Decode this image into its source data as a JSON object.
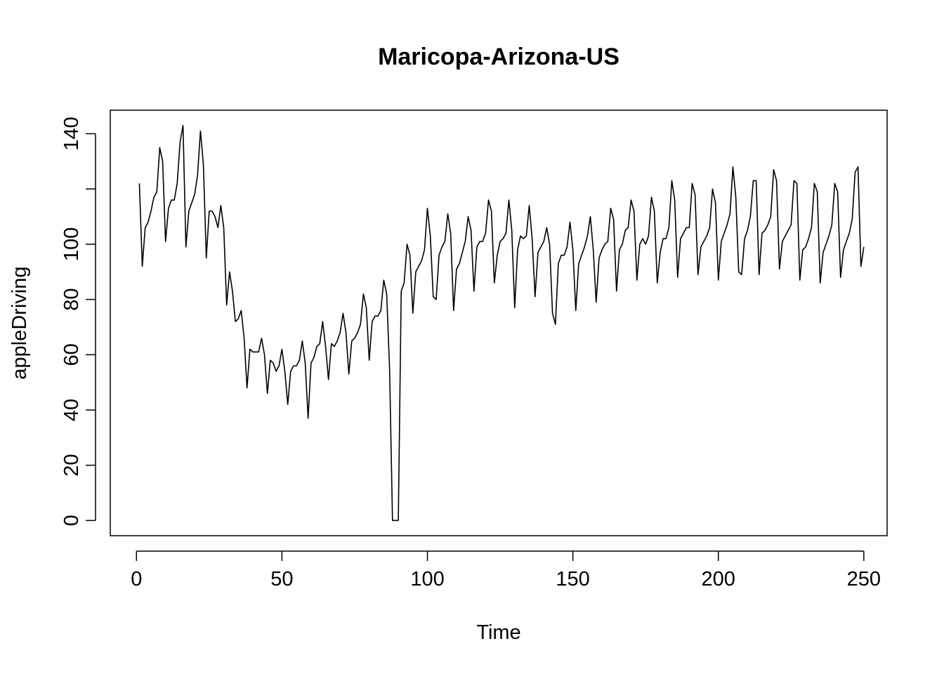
{
  "chart_data": {
    "type": "line",
    "title": "Maricopa-Arizona-US",
    "xlabel": "Time",
    "ylabel": "appleDriving",
    "xlim": [
      -9,
      258
    ],
    "ylim": [
      -5.5,
      148.5
    ],
    "x_ticks": [
      0,
      50,
      100,
      150,
      200,
      250
    ],
    "y_ticks": [
      0,
      20,
      40,
      60,
      80,
      100,
      140
    ],
    "grid": false,
    "legend": "none",
    "line_color": "#000000",
    "series": [
      {
        "x_start": 1,
        "values": [
          122,
          92,
          106,
          108,
          112,
          117,
          119,
          135,
          130,
          101,
          113,
          116,
          116,
          122,
          137,
          143,
          99,
          112,
          115,
          118,
          125,
          141,
          129,
          95,
          112,
          112,
          110,
          106,
          114,
          106,
          78,
          90,
          83,
          72,
          73,
          76,
          66,
          48,
          62,
          61,
          61,
          61,
          66,
          60,
          46,
          58,
          57,
          54,
          56,
          62,
          54,
          42,
          54,
          56,
          56,
          58,
          65,
          57,
          37,
          57,
          59,
          63,
          64,
          72,
          63,
          51,
          64,
          63,
          65,
          68,
          75,
          68,
          53,
          65,
          66,
          68,
          71,
          82,
          77,
          58,
          72,
          74,
          74,
          76,
          87,
          82,
          55,
          0,
          0,
          0,
          83,
          86,
          100,
          96,
          75,
          90,
          92,
          94,
          98,
          113,
          103,
          81,
          80,
          96,
          99,
          101,
          111,
          104,
          76,
          91,
          93,
          97,
          101,
          110,
          105,
          83,
          99,
          101,
          101,
          104,
          116,
          112,
          86,
          96,
          101,
          102,
          104,
          116,
          105,
          77,
          98,
          103,
          102,
          103,
          114,
          102,
          81,
          97,
          99,
          101,
          106,
          100,
          75,
          71,
          93,
          96,
          96,
          99,
          108,
          98,
          76,
          93,
          96,
          99,
          103,
          110,
          98,
          79,
          95,
          98,
          100,
          101,
          113,
          109,
          83,
          98,
          100,
          105,
          106,
          116,
          112,
          87,
          100,
          102,
          100,
          103,
          117,
          112,
          86,
          97,
          102,
          102,
          106,
          123,
          116,
          88,
          102,
          104,
          106,
          106,
          122,
          118,
          89,
          99,
          101,
          103,
          106,
          120,
          115,
          87,
          101,
          104,
          107,
          111,
          128,
          117,
          90,
          89,
          102,
          105,
          110,
          123,
          123,
          89,
          104,
          105,
          107,
          110,
          127,
          123,
          91,
          101,
          103,
          105,
          107,
          123,
          122,
          87,
          98,
          99,
          102,
          106,
          122,
          119,
          86,
          97,
          100,
          103,
          107,
          122,
          119,
          88,
          98,
          101,
          104,
          109,
          126,
          128,
          92,
          99
        ]
      }
    ]
  }
}
